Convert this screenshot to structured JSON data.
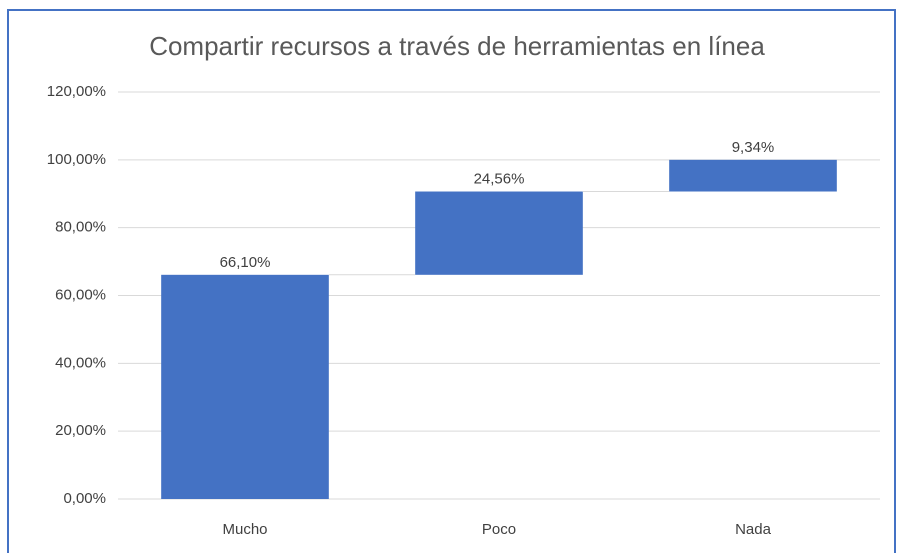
{
  "chart_data": {
    "type": "waterfall",
    "title": "Compartir recursos a través de herramientas en línea",
    "categories": [
      "Mucho",
      "Poco",
      "Nada"
    ],
    "values": [
      66.1,
      24.56,
      9.34
    ],
    "value_labels": [
      "66,10%",
      "24,56%",
      "9,34%"
    ],
    "color": "#4472c4",
    "ylim": [
      0,
      120
    ],
    "yticks": [
      {
        "value": 0,
        "label": "0,00%"
      },
      {
        "value": 20,
        "label": "20,00%"
      },
      {
        "value": 40,
        "label": "40,00%"
      },
      {
        "value": 60,
        "label": "60,00%"
      },
      {
        "value": 80,
        "label": "80,00%"
      },
      {
        "value": 100,
        "label": "100,00%"
      },
      {
        "value": 120,
        "label": "120,00%"
      }
    ],
    "grid": true
  }
}
